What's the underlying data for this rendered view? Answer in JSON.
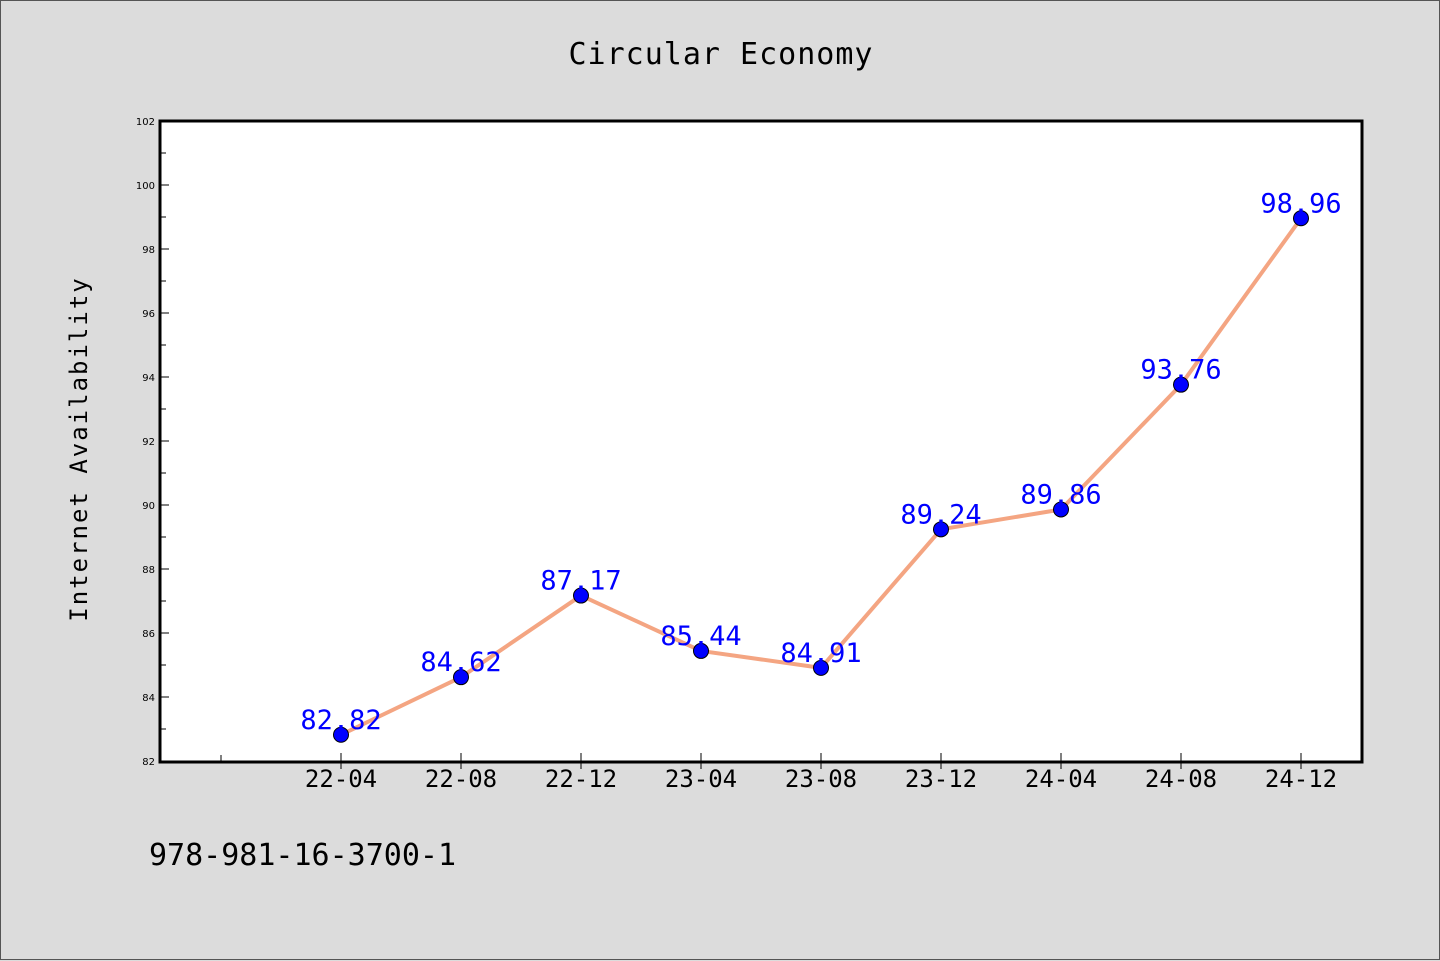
{
  "chart_data": {
    "type": "line",
    "title": "Circular Economy",
    "xlabel": "",
    "ylabel": "Internet Availability",
    "categories": [
      "22-04",
      "22-08",
      "22-12",
      "23-04",
      "23-08",
      "23-12",
      "24-04",
      "24-08",
      "24-12"
    ],
    "values": [
      82.82,
      84.62,
      87.17,
      85.44,
      84.91,
      89.24,
      89.86,
      93.76,
      98.96
    ],
    "data_labels": [
      "82.82",
      "84.62",
      "87.17",
      "85.44",
      "84.91",
      "89.24",
      "89.86",
      "93.76",
      "98.96"
    ],
    "ylim": [
      82,
      102
    ],
    "yticks": [
      82,
      84,
      86,
      88,
      90,
      92,
      94,
      96,
      98,
      100,
      102
    ],
    "grid": false,
    "legend": "none",
    "line_color": "#f4a582",
    "marker_color": "#0000ff",
    "label_color": "#0000ff",
    "plot_background": "#ffffff",
    "page_background": "#dcdcdc"
  },
  "footer": {
    "isbn": "978-981-16-3700-1"
  }
}
